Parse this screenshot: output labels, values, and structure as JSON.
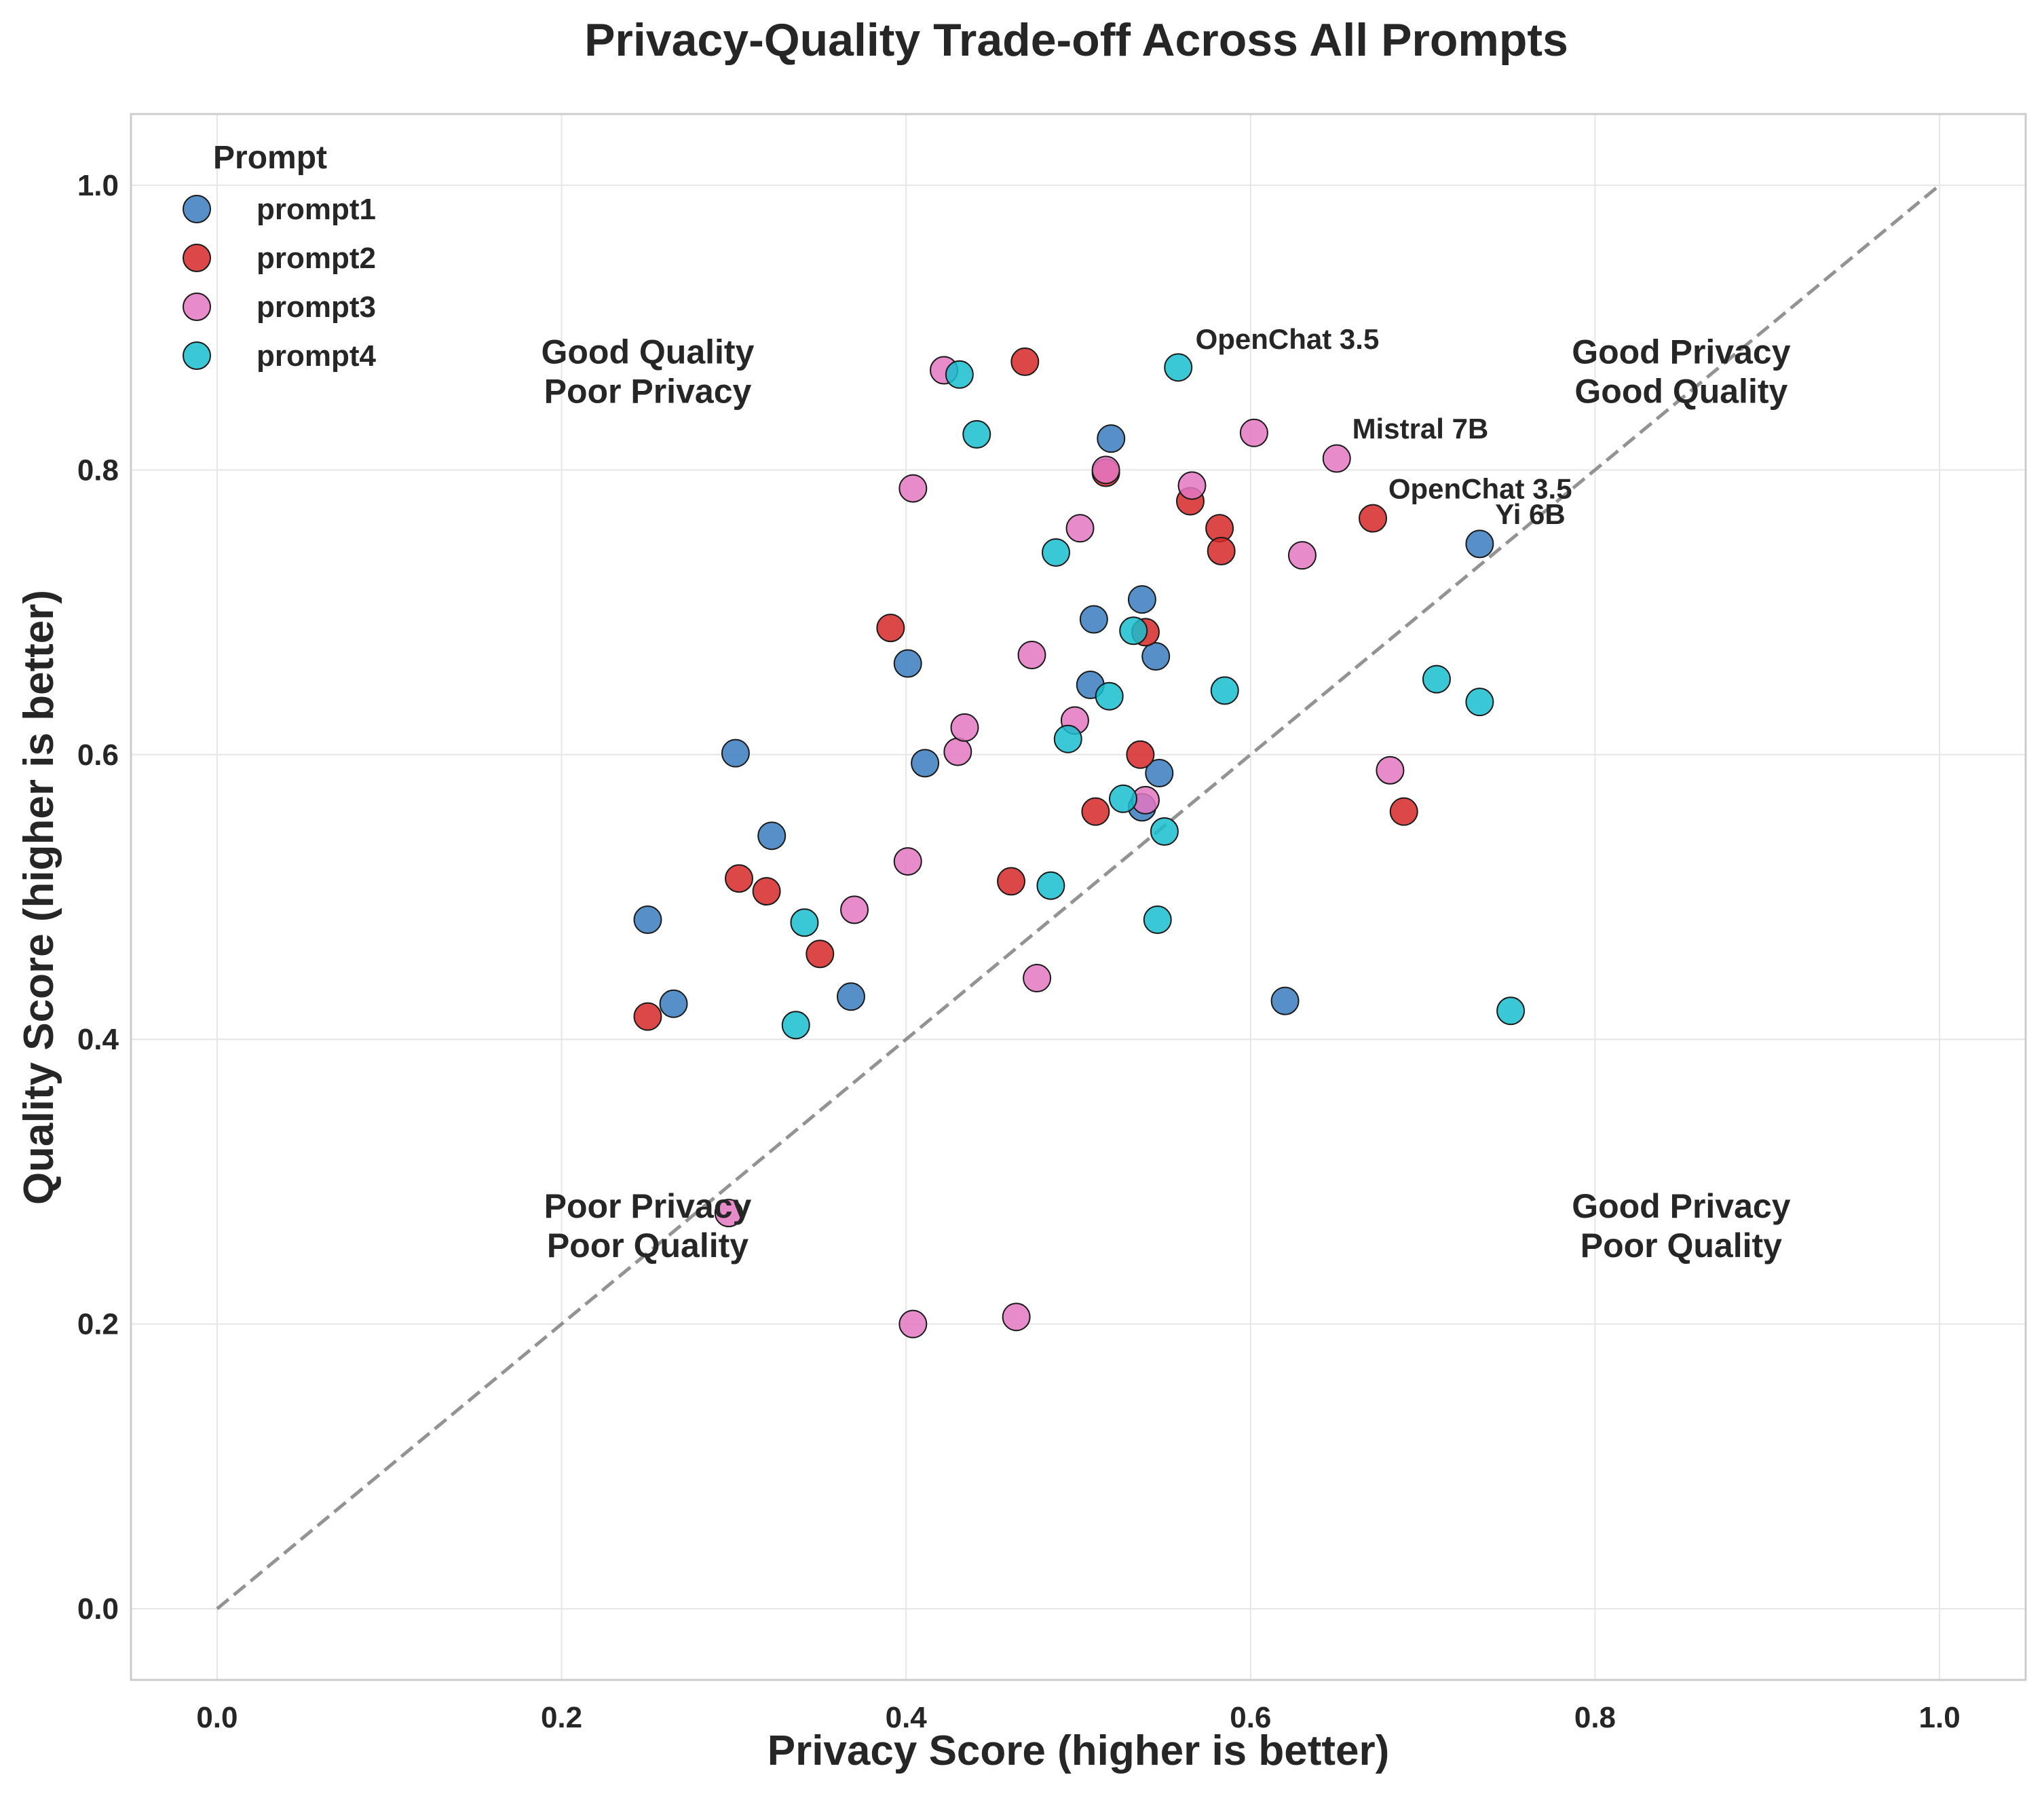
{
  "chart_data": {
    "type": "scatter",
    "title": "Privacy-Quality Trade-off Across All Prompts",
    "xlabel": "Privacy Score (higher is better)",
    "ylabel": "Quality Score (higher is better)",
    "xlim": [
      -0.05,
      1.05
    ],
    "ylim": [
      -0.05,
      1.05
    ],
    "xticks": [
      0.0,
      0.2,
      0.4,
      0.6,
      0.8,
      1.0
    ],
    "yticks": [
      0.0,
      0.2,
      0.4,
      0.6,
      0.8,
      1.0
    ],
    "x_tick_labels": [
      "0.0",
      "0.2",
      "0.4",
      "0.6",
      "0.8",
      "1.0"
    ],
    "y_tick_labels": [
      "0.0",
      "0.2",
      "0.4",
      "0.6",
      "0.8",
      "1.0"
    ],
    "grid": true,
    "legend": {
      "title": "Prompt",
      "placement": "top-left"
    },
    "reference_line": {
      "style": "dashed",
      "color": "#808080",
      "from": [
        0,
        0
      ],
      "to": [
        1,
        1
      ]
    },
    "quadrant_labels": [
      {
        "lines": [
          "Good Quality",
          "Poor Privacy"
        ],
        "x": 0.25,
        "y": 0.87
      },
      {
        "lines": [
          "Good Privacy",
          "Good Quality"
        ],
        "x": 0.85,
        "y": 0.87
      },
      {
        "lines": [
          "Poor Privacy",
          "Poor Quality"
        ],
        "x": 0.25,
        "y": 0.27
      },
      {
        "lines": [
          "Good Privacy",
          "Poor Quality"
        ],
        "x": 0.85,
        "y": 0.27
      }
    ],
    "annotations": [
      {
        "text": "OpenChat 3.5",
        "x": 0.568,
        "y": 0.885
      },
      {
        "text": "Mistral 7B",
        "x": 0.659,
        "y": 0.822
      },
      {
        "text": "OpenChat 3.5",
        "x": 0.68,
        "y": 0.78
      },
      {
        "text": "Yi 6B",
        "x": 0.742,
        "y": 0.762
      }
    ],
    "series": [
      {
        "name": "prompt1",
        "color": "#3a7dbe",
        "points": [
          [
            0.25,
            0.484
          ],
          [
            0.265,
            0.425
          ],
          [
            0.301,
            0.601
          ],
          [
            0.322,
            0.543
          ],
          [
            0.368,
            0.43
          ],
          [
            0.401,
            0.664
          ],
          [
            0.411,
            0.594
          ],
          [
            0.507,
            0.649
          ],
          [
            0.509,
            0.695
          ],
          [
            0.519,
            0.822
          ],
          [
            0.537,
            0.709
          ],
          [
            0.545,
            0.669
          ],
          [
            0.547,
            0.587
          ],
          [
            0.537,
            0.563
          ],
          [
            0.62,
            0.427
          ],
          [
            0.733,
            0.748
          ]
        ]
      },
      {
        "name": "prompt2",
        "color": "#d62728",
        "points": [
          [
            0.25,
            0.416
          ],
          [
            0.303,
            0.513
          ],
          [
            0.319,
            0.504
          ],
          [
            0.35,
            0.46
          ],
          [
            0.391,
            0.689
          ],
          [
            0.461,
            0.511
          ],
          [
            0.469,
            0.876
          ],
          [
            0.51,
            0.56
          ],
          [
            0.516,
            0.798
          ],
          [
            0.536,
            0.6
          ],
          [
            0.539,
            0.686
          ],
          [
            0.565,
            0.778
          ],
          [
            0.582,
            0.759
          ],
          [
            0.583,
            0.743
          ],
          [
            0.671,
            0.766
          ],
          [
            0.689,
            0.56
          ]
        ]
      },
      {
        "name": "prompt3",
        "color": "#e377c2",
        "points": [
          [
            0.297,
            0.278
          ],
          [
            0.37,
            0.491
          ],
          [
            0.401,
            0.525
          ],
          [
            0.404,
            0.787
          ],
          [
            0.404,
            0.2
          ],
          [
            0.422,
            0.87
          ],
          [
            0.43,
            0.602
          ],
          [
            0.434,
            0.619
          ],
          [
            0.464,
            0.205
          ],
          [
            0.473,
            0.67
          ],
          [
            0.476,
            0.443
          ],
          [
            0.498,
            0.624
          ],
          [
            0.501,
            0.759
          ],
          [
            0.516,
            0.8
          ],
          [
            0.539,
            0.568
          ],
          [
            0.566,
            0.789
          ],
          [
            0.602,
            0.826
          ],
          [
            0.63,
            0.74
          ],
          [
            0.65,
            0.808
          ],
          [
            0.681,
            0.589
          ]
        ]
      },
      {
        "name": "prompt4",
        "color": "#17becf",
        "points": [
          [
            0.336,
            0.41
          ],
          [
            0.341,
            0.482
          ],
          [
            0.431,
            0.867
          ],
          [
            0.441,
            0.825
          ],
          [
            0.484,
            0.508
          ],
          [
            0.487,
            0.742
          ],
          [
            0.494,
            0.611
          ],
          [
            0.518,
            0.641
          ],
          [
            0.526,
            0.569
          ],
          [
            0.532,
            0.687
          ],
          [
            0.546,
            0.484
          ],
          [
            0.55,
            0.546
          ],
          [
            0.558,
            0.872
          ],
          [
            0.585,
            0.645
          ],
          [
            0.708,
            0.653
          ],
          [
            0.733,
            0.637
          ],
          [
            0.751,
            0.42
          ]
        ]
      }
    ]
  }
}
